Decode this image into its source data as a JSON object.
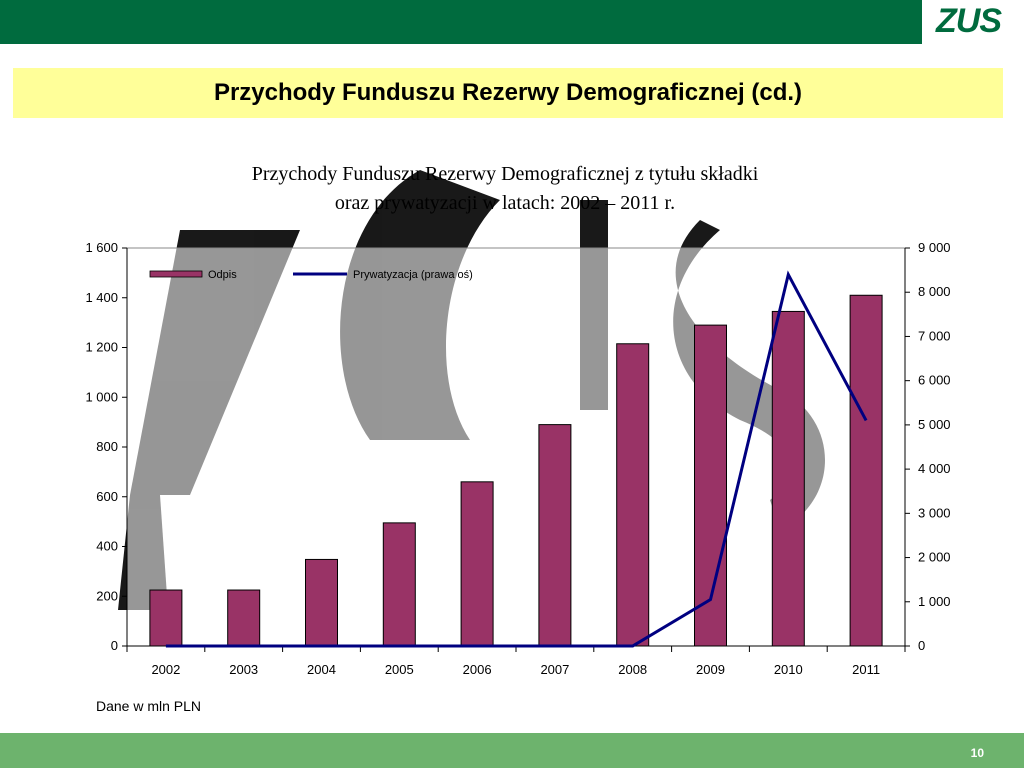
{
  "header": {
    "logo_text": "ZUS"
  },
  "slide_title": "Przychody Funduszu Rezerwy Demograficznej (cd.)",
  "footnote": "Dane w mln PLN",
  "page_number": "10",
  "colors": {
    "topbar": "#006B3E",
    "bottombar": "#6DB36D",
    "title_bg": "#FFFF99",
    "bar": "#993366",
    "line": "#000080"
  },
  "chart_data": {
    "type": "bar",
    "title_lines": [
      "Przychody Funduszu Rezerwy Demograficznej z tytułu składki",
      "oraz prywatyzacji w latach: 2002 – 2011 r."
    ],
    "categories": [
      "2002",
      "2003",
      "2004",
      "2005",
      "2006",
      "2007",
      "2008",
      "2009",
      "2010",
      "2011"
    ],
    "series": [
      {
        "name": "Odpis",
        "type": "bar",
        "axis": "left",
        "values": [
          225,
          225,
          348,
          495,
          660,
          890,
          1215,
          1290,
          1345,
          1410
        ]
      },
      {
        "name": "Prywatyzacja (prawa oś)",
        "type": "line",
        "axis": "right",
        "values": [
          0,
          0,
          0,
          0,
          0,
          0,
          0,
          1050,
          8400,
          5100
        ]
      }
    ],
    "y_left": {
      "min": 0,
      "max": 1600,
      "ticks": [
        0,
        200,
        400,
        600,
        800,
        1000,
        1200,
        1400,
        1600
      ],
      "tick_labels": [
        "0",
        "200",
        "400",
        "600",
        "800",
        "1 000",
        "1 200",
        "1 400",
        "1 600"
      ]
    },
    "y_right": {
      "min": 0,
      "max": 9000,
      "ticks": [
        0,
        1000,
        2000,
        3000,
        4000,
        5000,
        6000,
        7000,
        8000,
        9000
      ],
      "tick_labels": [
        "0",
        "1 000",
        "2 000",
        "3 000",
        "4 000",
        "5 000",
        "6 000",
        "7 000",
        "8 000",
        "9 000"
      ]
    },
    "legend_position": "top-left",
    "grid": false
  }
}
